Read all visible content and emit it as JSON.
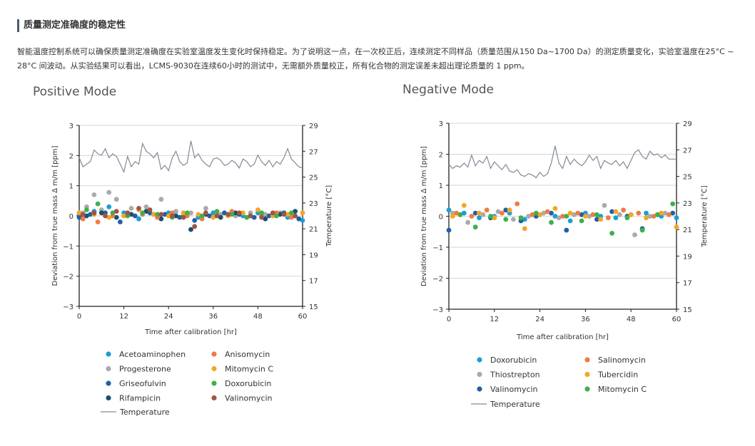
{
  "section": {
    "title": "质量测定准确度的稳定性",
    "description": "智能温度控制系统可以确保质量测定准确度在实验室温度发生变化时保持稳定。为了说明这一点，在一次校正后，连续测定不同样品（质量范围从150 Da~1700 Da）的测定质量变化，实验室温度在25°C ~ 28°C 间波动。从实验结果可以看出，LCMS-9030在连续60小时的测试中，无需额外质量校正，所有化合物的测定误差未超出理论质量的 1 ppm。"
  },
  "chart_data": [
    {
      "type": "scatter",
      "title": "Positive Mode",
      "xlabel": "Time after calibration [hr]",
      "ylabel": "Deviation from true mass Δ m/m [ppm]",
      "y2label": "Temperature [°C]",
      "xlim": [
        0,
        60
      ],
      "ylim": [
        -3,
        3
      ],
      "y2lim": [
        15,
        29
      ],
      "xticks": [
        0,
        12,
        24,
        36,
        48,
        60
      ],
      "yticks": [
        -3,
        -2,
        -1,
        0,
        1,
        2,
        3
      ],
      "y2ticks": [
        15,
        17,
        19,
        21,
        23,
        25,
        27,
        29
      ],
      "xtick_labels": [
        "0",
        "12",
        "24",
        "36",
        "48",
        "60"
      ],
      "ytick_labels": [
        "−3",
        "−2",
        "−1",
        "0",
        "1",
        "2",
        "3"
      ],
      "y2tick_labels": [
        "15",
        "17",
        "19",
        "21",
        "23",
        "25",
        "27",
        "29"
      ],
      "grid": true,
      "legend_position": "bottom",
      "series": [
        {
          "name": "Acetoaminophen",
          "color": "#1a9ed6",
          "x": [
            0,
            4,
            8,
            12,
            16,
            20,
            24,
            28,
            32,
            36,
            40,
            44,
            48,
            52,
            56,
            60
          ],
          "y": [
            0.05,
            0.15,
            0.3,
            0.1,
            -0.1,
            0.05,
            0.1,
            0.0,
            -0.05,
            0.1,
            0.05,
            0.0,
            0.1,
            0.05,
            -0.05,
            -0.15
          ]
        },
        {
          "name": "Progesterone",
          "color": "#aaaaaa",
          "x": [
            1,
            2,
            4,
            6,
            8,
            10,
            14,
            18,
            22,
            26,
            30,
            34,
            38,
            42,
            46,
            50,
            54,
            58
          ],
          "y": [
            0.1,
            0.3,
            0.7,
            0.2,
            0.78,
            0.55,
            0.25,
            0.3,
            0.55,
            0.15,
            0.1,
            0.25,
            0.05,
            0.0,
            0.1,
            0.05,
            0.1,
            0.0
          ]
        },
        {
          "name": "Griseofulvin",
          "color": "#1f5fa8",
          "x": [
            0,
            3,
            7,
            11,
            15,
            19,
            23,
            27,
            31,
            35,
            39,
            43,
            47,
            51,
            55,
            59
          ],
          "y": [
            -0.05,
            0.05,
            0.1,
            -0.2,
            0.0,
            0.1,
            0.05,
            -0.05,
            -0.15,
            0.0,
            0.1,
            0.05,
            -0.05,
            0.0,
            0.1,
            -0.1
          ]
        },
        {
          "name": "Rifampicin",
          "color": "#1a4f70",
          "x": [
            2,
            6,
            10,
            14,
            18,
            22,
            26,
            30,
            34,
            38,
            42,
            46,
            50,
            54,
            58
          ],
          "y": [
            0.0,
            0.1,
            -0.05,
            0.05,
            0.15,
            -0.1,
            0.0,
            -0.45,
            0.05,
            -0.05,
            0.1,
            0.0,
            -0.1,
            0.05,
            0.15
          ]
        },
        {
          "name": "Anisomycin",
          "color": "#f07a45",
          "x": [
            1,
            5,
            9,
            13,
            17,
            21,
            25,
            29,
            33,
            37,
            41,
            45,
            49,
            53,
            57
          ],
          "y": [
            -0.1,
            -0.2,
            0.0,
            0.1,
            0.05,
            -0.05,
            0.1,
            0.0,
            -0.1,
            0.05,
            0.15,
            -0.05,
            0.0,
            0.1,
            -0.05
          ]
        },
        {
          "name": "Mitomycin C",
          "color": "#f5a623",
          "x": [
            0,
            4,
            8,
            12,
            16,
            20,
            24,
            28,
            32,
            36,
            40,
            44,
            48,
            52,
            56,
            60
          ],
          "y": [
            0.1,
            0.05,
            -0.05,
            0.0,
            0.2,
            0.05,
            0.0,
            0.1,
            0.05,
            -0.05,
            0.0,
            0.1,
            0.2,
            0.0,
            0.05,
            0.1
          ]
        },
        {
          "name": "Doxorubicin",
          "color": "#3fb04a",
          "x": [
            2,
            5,
            9,
            13,
            17,
            21,
            25,
            29,
            33,
            37,
            41,
            45,
            49,
            53,
            57
          ],
          "y": [
            0.2,
            0.4,
            0.1,
            0.0,
            0.1,
            0.05,
            -0.05,
            0.1,
            0.0,
            0.15,
            0.05,
            -0.05,
            0.1,
            0.0,
            0.1
          ]
        },
        {
          "name": "Valinomycin",
          "color": "#a05545",
          "x": [
            1,
            4,
            7,
            10,
            13,
            16,
            19,
            22,
            25,
            28,
            31,
            34,
            37,
            40,
            43,
            46,
            49,
            52,
            55,
            58
          ],
          "y": [
            0.05,
            0.1,
            0.0,
            0.15,
            0.1,
            0.25,
            0.2,
            0.05,
            0.0,
            -0.05,
            -0.35,
            0.1,
            0.0,
            0.05,
            0.1,
            0.0,
            -0.05,
            0.1,
            0.05,
            0.0
          ]
        }
      ],
      "temperature": {
        "name": "Temperature",
        "color": "#808a96",
        "x": [
          0,
          1,
          2,
          3,
          4,
          5,
          6,
          7,
          8,
          9,
          10,
          11,
          12,
          13,
          14,
          15,
          16,
          17,
          18,
          19,
          20,
          21,
          22,
          23,
          24,
          25,
          26,
          27,
          28,
          29,
          30,
          31,
          32,
          33,
          34,
          35,
          36,
          37,
          38,
          39,
          40,
          41,
          42,
          43,
          44,
          45,
          46,
          47,
          48,
          49,
          50,
          51,
          52,
          53,
          54,
          55,
          56,
          57,
          58,
          59,
          60
        ],
        "y": [
          26.5,
          25.8,
          26.0,
          26.2,
          27.1,
          26.8,
          26.7,
          27.2,
          26.5,
          26.8,
          26.6,
          26.0,
          25.4,
          26.6,
          25.8,
          26.2,
          26.0,
          27.6,
          27.0,
          26.8,
          26.5,
          26.9,
          25.6,
          25.9,
          25.5,
          26.5,
          27.0,
          26.2,
          25.9,
          26.1,
          27.8,
          26.5,
          26.8,
          26.3,
          26.0,
          25.8,
          26.4,
          26.5,
          26.3,
          25.9,
          26.0,
          26.3,
          26.1,
          25.7,
          26.4,
          26.2,
          25.8,
          26.0,
          26.7,
          26.2,
          25.9,
          26.3,
          25.8,
          26.2,
          26.0,
          26.5,
          27.2,
          26.4,
          26.1,
          25.8,
          25.7
        ]
      }
    },
    {
      "type": "scatter",
      "title": "Negative Mode",
      "xlabel": "Time after calibration [hr]",
      "ylabel": "Deviation from true mass Δ m/m [ppm]",
      "y2label": "Temperature [°C]",
      "xlim": [
        0,
        60
      ],
      "ylim": [
        -3,
        3
      ],
      "y2lim": [
        15,
        29
      ],
      "xticks": [
        0,
        12,
        24,
        36,
        48,
        60
      ],
      "yticks": [
        -3,
        -2,
        -1,
        0,
        1,
        2,
        3
      ],
      "y2ticks": [
        15,
        17,
        19,
        21,
        23,
        25,
        27,
        29
      ],
      "xtick_labels": [
        "0",
        "12",
        "24",
        "36",
        "48",
        "60"
      ],
      "ytick_labels": [
        "−3",
        "−2",
        "−1",
        "0",
        "1",
        "2",
        "3"
      ],
      "y2tick_labels": [
        "15",
        "17",
        "19",
        "21",
        "23",
        "25",
        "27",
        "29"
      ],
      "grid": true,
      "legend_position": "bottom",
      "series": [
        {
          "name": "Doxorubicin",
          "color": "#1a9ed6",
          "x": [
            0,
            4,
            8,
            12,
            16,
            20,
            24,
            28,
            32,
            36,
            40,
            44,
            48,
            52,
            56,
            60
          ],
          "y": [
            0.2,
            0.1,
            -0.05,
            0.0,
            0.1,
            -0.1,
            0.05,
            0.0,
            -0.15,
            0.1,
            0.0,
            -0.05,
            0.05,
            0.1,
            0.0,
            -0.05
          ]
        },
        {
          "name": "Thiostrepton",
          "color": "#aaaaaa",
          "x": [
            1,
            5,
            9,
            13,
            17,
            21,
            25,
            29,
            33,
            37,
            41,
            45,
            49,
            53,
            57
          ],
          "y": [
            0.1,
            -0.2,
            0.05,
            0.15,
            -0.1,
            0.0,
            0.1,
            -0.05,
            0.05,
            0.0,
            0.35,
            0.05,
            -0.6,
            0.0,
            0.1
          ]
        },
        {
          "name": "Valinomycin",
          "color": "#1f5fa8",
          "x": [
            0,
            3,
            7,
            11,
            15,
            19,
            23,
            27,
            31,
            35,
            39,
            43,
            47,
            51,
            55,
            59
          ],
          "y": [
            -0.45,
            0.05,
            0.1,
            -0.05,
            0.2,
            -0.15,
            0.0,
            0.1,
            -0.45,
            0.05,
            -0.1,
            0.15,
            0.0,
            -0.4,
            0.05,
            0.1
          ]
        },
        {
          "name": "Salinomycin",
          "color": "#f07a45",
          "x": [
            2,
            6,
            10,
            14,
            18,
            22,
            26,
            30,
            34,
            38,
            42,
            46,
            50,
            54,
            58
          ],
          "y": [
            0.1,
            0.0,
            0.2,
            0.1,
            0.4,
            0.05,
            0.15,
            0.0,
            0.1,
            0.05,
            -0.05,
            0.2,
            0.1,
            0.0,
            0.05
          ]
        },
        {
          "name": "Tubercidin",
          "color": "#f5a623",
          "x": [
            1,
            4,
            8,
            12,
            16,
            20,
            24,
            28,
            32,
            36,
            40,
            44,
            48,
            52,
            56,
            60
          ],
          "y": [
            0.0,
            0.35,
            0.1,
            -0.05,
            0.2,
            -0.4,
            0.05,
            0.25,
            0.1,
            0.0,
            -0.1,
            0.15,
            0.05,
            -0.05,
            0.1,
            -0.35
          ]
        },
        {
          "name": "Mitomycin C",
          "color": "#3fb04a",
          "x": [
            3,
            7,
            11,
            15,
            19,
            23,
            27,
            31,
            35,
            39,
            43,
            47,
            51,
            55,
            59
          ],
          "y": [
            0.05,
            -0.35,
            0.0,
            -0.1,
            -0.05,
            0.1,
            -0.2,
            0.0,
            -0.15,
            0.05,
            -0.55,
            -0.05,
            -0.45,
            0.05,
            0.4
          ]
        }
      ],
      "temperature": {
        "name": "Temperature",
        "color": "#808a96",
        "x": [
          0,
          1,
          2,
          3,
          4,
          5,
          6,
          7,
          8,
          9,
          10,
          11,
          12,
          13,
          14,
          15,
          16,
          17,
          18,
          19,
          20,
          21,
          22,
          23,
          24,
          25,
          26,
          27,
          28,
          29,
          30,
          31,
          32,
          33,
          34,
          35,
          36,
          37,
          38,
          39,
          40,
          41,
          42,
          43,
          44,
          45,
          46,
          47,
          48,
          49,
          50,
          51,
          52,
          53,
          54,
          55,
          56,
          57,
          58,
          59,
          60
        ],
        "y": [
          25.9,
          25.6,
          25.8,
          25.7,
          26.0,
          25.7,
          26.6,
          25.8,
          26.2,
          26.0,
          26.5,
          25.6,
          26.1,
          25.8,
          25.5,
          25.9,
          25.4,
          25.3,
          25.5,
          25.1,
          25.0,
          25.2,
          25.1,
          24.9,
          25.3,
          25.0,
          25.2,
          26.0,
          27.3,
          26.0,
          25.6,
          26.5,
          25.9,
          26.3,
          26.0,
          25.8,
          26.1,
          26.6,
          26.2,
          26.5,
          25.6,
          26.2,
          26.0,
          25.9,
          26.2,
          25.8,
          26.1,
          25.6,
          26.2,
          26.8,
          27.0,
          26.5,
          26.3,
          26.9,
          26.6,
          26.7,
          26.4,
          26.6,
          26.3,
          26.3,
          26.3
        ]
      }
    }
  ]
}
